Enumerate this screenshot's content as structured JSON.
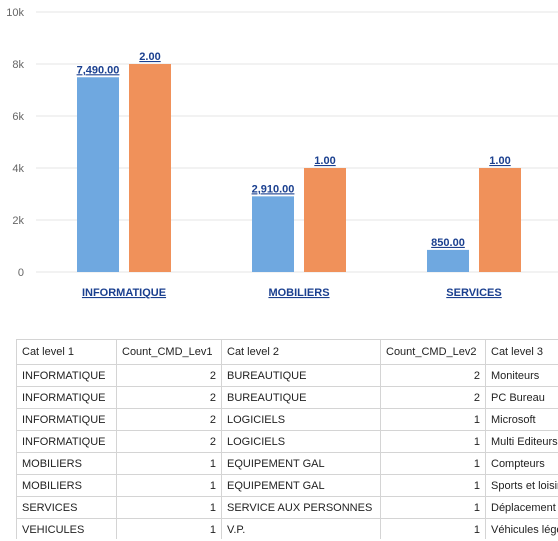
{
  "chart_data": {
    "type": "bar",
    "categories": [
      "INFORMATIQUE",
      "MOBILIERS",
      "SERVICES"
    ],
    "series": [
      {
        "values": [
          7490,
          2910,
          850
        ],
        "labels": [
          "7,490.00",
          "2,910.00",
          "850.00"
        ],
        "color": "#6fa8e0"
      },
      {
        "values": [
          8000,
          4000,
          4000
        ],
        "labels": [
          "2.00",
          "1.00",
          "1.00"
        ],
        "color": "#f0915a"
      }
    ],
    "ylim": [
      0,
      10000
    ],
    "yticks": [
      0,
      2000,
      4000,
      6000,
      8000,
      10000
    ],
    "ytick_labels": [
      "0",
      "2k",
      "4k",
      "6k",
      "8k",
      "10k"
    ],
    "grid": true,
    "title": "",
    "xlabel": "",
    "ylabel": ""
  },
  "table": {
    "headers": [
      "Cat level 1",
      "Count_CMD_Lev1",
      "Cat level 2",
      "Count_CMD_Lev2",
      "Cat level 3"
    ],
    "rows": [
      [
        "INFORMATIQUE",
        "2",
        "BUREAUTIQUE",
        "2",
        "Moniteurs"
      ],
      [
        "INFORMATIQUE",
        "2",
        "BUREAUTIQUE",
        "2",
        "PC Bureau"
      ],
      [
        "INFORMATIQUE",
        "2",
        "LOGICIELS",
        "1",
        "Microsoft"
      ],
      [
        "INFORMATIQUE",
        "2",
        "LOGICIELS",
        "1",
        "Multi Editeurs"
      ],
      [
        "MOBILIERS",
        "1",
        "EQUIPEMENT GAL",
        "1",
        "Compteurs"
      ],
      [
        "MOBILIERS",
        "1",
        "EQUIPEMENT GAL",
        "1",
        "Sports et loisirs"
      ],
      [
        "SERVICES",
        "1",
        "SERVICE AUX PERSONNES",
        "1",
        "Déplacement"
      ],
      [
        "VEHICULES",
        "1",
        "V.P.",
        "1",
        "Véhicules légers"
      ]
    ]
  }
}
